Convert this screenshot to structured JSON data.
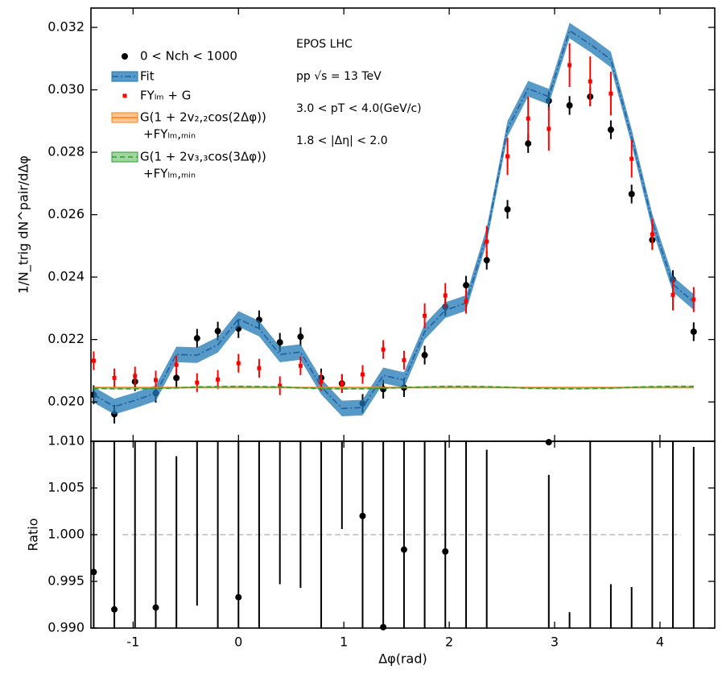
{
  "chart_data": [
    {
      "type": "errorbar",
      "ylabel": "1/N_trig dN^pair/dΔφ",
      "annotations": [
        "EPOS LHC",
        "pp √s = 13 TeV",
        "3.0 < pT < 4.0(GeV/c)",
        "1.8 < |Δη| < 2.0"
      ],
      "xlim": [
        -1.4,
        4.52
      ],
      "ylim": [
        0.01874,
        0.03262
      ],
      "yticks": [
        {
          "value": 0.02,
          "label": "0.020"
        },
        0.022,
        0.024,
        0.026,
        0.028,
        {
          "value": 0.03,
          "label": "0.030"
        },
        0.032
      ],
      "x": [
        -1.374,
        -1.178,
        -0.982,
        -0.785,
        -0.589,
        -0.393,
        -0.196,
        0.0,
        0.196,
        0.393,
        0.589,
        0.785,
        0.982,
        1.178,
        1.374,
        1.571,
        1.767,
        1.963,
        2.16,
        2.356,
        2.553,
        2.749,
        2.945,
        3.142,
        3.338,
        3.534,
        3.731,
        3.927,
        4.123,
        4.32
      ],
      "series": [
        {
          "name": "0 < Nch < 1000",
          "kind": "points",
          "marker": "circle",
          "color": "#000000",
          "values": [
            0.02023,
            0.01961,
            0.02065,
            0.02028,
            0.02077,
            0.02204,
            0.02227,
            0.02235,
            0.02263,
            0.02191,
            0.02209,
            0.02077,
            0.02059,
            0.01995,
            0.02041,
            0.02046,
            0.0215,
            0.02305,
            0.02374,
            0.02454,
            0.02617,
            0.02828,
            0.02965,
            0.0295,
            0.02978,
            0.02872,
            0.02666,
            0.02519,
            0.02392,
            0.02225
          ],
          "errors": [
            0.0003,
            0.0003,
            0.0003,
            0.0003,
            0.0003,
            0.0003,
            0.0003,
            0.0003,
            0.0003,
            0.0003,
            0.0003,
            0.0003,
            0.0003,
            0.0003,
            0.0003,
            0.0003,
            0.0003,
            0.0003,
            0.0003,
            0.0003,
            0.0003,
            0.0003,
            0.0003,
            0.0003,
            0.0003,
            0.0003,
            0.0003,
            0.0003,
            0.0003,
            0.0003
          ]
        },
        {
          "name": "Fit",
          "kind": "band",
          "color": "#1f77b4",
          "band": 0.00025,
          "values": [
            0.02023,
            0.01985,
            0.02005,
            0.02028,
            0.02152,
            0.0215,
            0.02183,
            0.02266,
            0.02235,
            0.02152,
            0.0216,
            0.02049,
            0.01979,
            0.01982,
            0.02085,
            0.0207,
            0.02225,
            0.02294,
            0.02317,
            0.02534,
            0.02875,
            0.03004,
            0.02978,
            0.0319,
            0.03146,
            0.03097,
            0.02849,
            0.02578,
            0.02377,
            0.0232
          ]
        },
        {
          "name": "FYₗₘ + G",
          "kind": "points",
          "marker": "square",
          "color": "#ff0000",
          "values": [
            0.02132,
            0.02077,
            0.02083,
            0.0207,
            0.02119,
            0.02062,
            0.02072,
            0.02124,
            0.02108,
            0.02052,
            0.02116,
            0.02065,
            0.02059,
            0.02088,
            0.02168,
            0.02134,
            0.02276,
            0.02341,
            0.02323,
            0.02514,
            0.02787,
            0.02908,
            0.02875,
            0.03079,
            0.03027,
            0.02988,
            0.02779,
            0.02537,
            0.02343,
            0.02328
          ],
          "errors": [
            0.0003,
            0.0003,
            0.0003,
            0.0003,
            0.0003,
            0.0003,
            0.0003,
            0.0003,
            0.0003,
            0.0003,
            0.0003,
            0.0003,
            0.0003,
            0.0003,
            0.0003,
            0.0003,
            0.0004,
            0.0004,
            0.0004,
            0.0005,
            0.0006,
            0.0007,
            0.0007,
            0.0007,
            0.0008,
            0.0007,
            0.0006,
            0.0005,
            0.0005,
            0.0004
          ]
        },
        {
          "name": "G(1 + 2v₂,₂cos(2Δφ))",
          "name2": "+FYₗₘ,ₘᵢₙ",
          "kind": "line",
          "dash": false,
          "color": "#ff7f0e",
          "band": 3e-05,
          "values": [
            0.02046,
            0.02046,
            0.02046,
            0.02046,
            0.02046,
            0.02046,
            0.02046,
            0.02046,
            0.02046,
            0.02046,
            0.02046,
            0.02046,
            0.02046,
            0.02046,
            0.02046,
            0.02046,
            0.02046,
            0.02046,
            0.02046,
            0.02046,
            0.02046,
            0.02046,
            0.02046,
            0.02046,
            0.02046,
            0.02046,
            0.02046,
            0.02046,
            0.02046,
            0.02046
          ]
        },
        {
          "name": "G(1 + 2v₃,₃cos(3Δφ))",
          "name2": "+FYₗₘ,ₘᵢₙ",
          "kind": "line",
          "dash": true,
          "color": "#2ca02c",
          "band": 3e-05,
          "values": [
            0.02044,
            0.02042,
            0.02042,
            0.02043,
            0.02045,
            0.02048,
            0.02049,
            0.0205,
            0.02049,
            0.02048,
            0.02045,
            0.02043,
            0.02042,
            0.02042,
            0.02044,
            0.02046,
            0.02048,
            0.0205,
            0.0205,
            0.02049,
            0.02047,
            0.02044,
            0.02043,
            0.02042,
            0.02043,
            0.02044,
            0.02047,
            0.02049,
            0.0205,
            0.0205
          ]
        }
      ]
    },
    {
      "type": "ratio",
      "ylabel": "Ratio",
      "xlabel": "Δφ(rad)",
      "xlim": [
        -1.4,
        4.52
      ],
      "ylim": [
        0.99,
        1.01
      ],
      "xticks": [
        -1,
        0,
        1,
        2,
        3,
        4
      ],
      "yticks": [
        {
          "value": 0.99,
          "label": "0.990"
        },
        0.995,
        {
          "value": 1.0,
          "label": "1.000"
        },
        1.005,
        {
          "value": 1.01,
          "label": "1.010"
        }
      ],
      "reference": {
        "value": 1,
        "x": [
          -1.1,
          4.2
        ]
      },
      "x": [
        -1.374,
        -1.178,
        -0.982,
        -0.785,
        -0.589,
        -0.393,
        -0.196,
        0.0,
        0.196,
        0.393,
        0.589,
        0.785,
        0.982,
        1.178,
        1.374,
        1.571,
        1.767,
        1.963,
        2.16,
        2.356,
        2.553,
        2.749,
        2.945,
        3.142,
        3.338,
        3.534,
        3.731,
        3.927,
        4.123,
        4.32
      ],
      "values": [
        0.996,
        0.992,
        null,
        0.9922,
        null,
        null,
        null,
        0.9933,
        null,
        null,
        null,
        null,
        null,
        1.002,
        0.9901,
        0.9984,
        null,
        0.9982,
        null,
        null,
        null,
        null,
        1.0099,
        null,
        null,
        null,
        null,
        null,
        null,
        null
      ],
      "bar_low": [
        0.985,
        0.985,
        0.985,
        0.985,
        0.985,
        0.9924,
        0.985,
        0.985,
        0.985,
        0.9947,
        0.9943,
        0.985,
        1.0006,
        0.985,
        0.985,
        0.985,
        0.985,
        0.985,
        0.985,
        0.985,
        null,
        null,
        0.985,
        0.985,
        0.985,
        0.985,
        0.985,
        0.985,
        0.985,
        0.985
      ],
      "bar_high": [
        1.015,
        1.015,
        1.015,
        1.015,
        1.0084,
        1.015,
        1.015,
        1.015,
        1.015,
        1.015,
        1.015,
        1.015,
        1.015,
        1.015,
        1.015,
        1.015,
        1.015,
        1.015,
        1.015,
        1.0091,
        null,
        null,
        1.0064,
        0.9917,
        1.015,
        0.9947,
        0.9944,
        1.015,
        1.015,
        1.0094
      ],
      "color": "#000000",
      "reference_color": "#bbbbbb"
    }
  ]
}
